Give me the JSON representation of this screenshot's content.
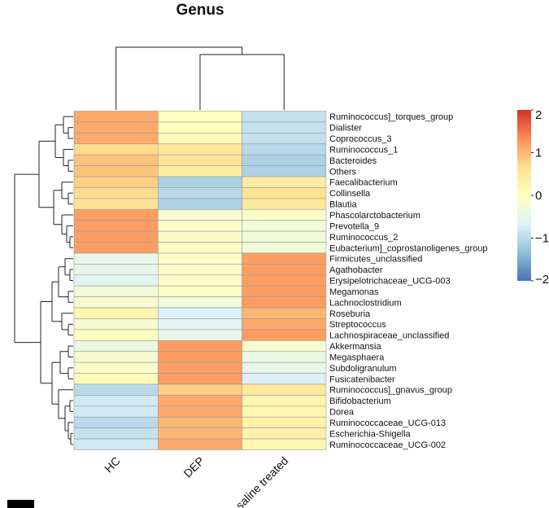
{
  "chart_data": {
    "type": "heatmap",
    "title": "Genus",
    "columns": [
      "HC",
      "DEP",
      "saline treated"
    ],
    "rows": [
      "Ruminococcus]_torques_group",
      "Dialister",
      "Coprococcus_3",
      "Ruminococcus_1",
      "Bacteroides",
      "Others",
      "Faecalibacterium",
      "Collinsella",
      "Blautia",
      "Phascolarctobacterium",
      "Prevotella_9",
      "Ruminococcus_2",
      "Eubacterium]_coprostanoligenes_group",
      "Firmicutes_unclassified",
      "Agathobacter",
      "Erysipelotrichaceae_UCG-003",
      "Megamonas",
      "Lachnoclostridium",
      "Roseburia",
      "Streptococcus",
      "Lachnospiraceae_unclassified",
      "Akkermansia",
      "Megasphaera",
      "Subdoligranulum",
      "Fusicatenibacter",
      "Ruminococcus]_gnavus_group",
      "Bifidobacterium",
      "Dorea",
      "Ruminococcaceae_UCG-013",
      "Escherichia-Shigella",
      "Ruminococcaceae_UCG-002"
    ],
    "values": [
      [
        1.1,
        0.0,
        -0.9
      ],
      [
        1.1,
        0.0,
        -0.9
      ],
      [
        1.1,
        0.1,
        -0.9
      ],
      [
        0.7,
        0.5,
        -1.0
      ],
      [
        0.9,
        0.6,
        -1.1
      ],
      [
        0.9,
        0.4,
        -1.1
      ],
      [
        0.8,
        -1.1,
        0.4
      ],
      [
        0.7,
        -1.0,
        0.6
      ],
      [
        0.6,
        -1.1,
        0.5
      ],
      [
        1.2,
        -0.2,
        -0.1
      ],
      [
        1.2,
        -0.1,
        -0.3
      ],
      [
        1.2,
        -0.1,
        -0.3
      ],
      [
        1.2,
        -0.1,
        -0.3
      ],
      [
        -0.5,
        -0.1,
        1.2
      ],
      [
        -0.5,
        -0.1,
        1.2
      ],
      [
        -0.6,
        -0.1,
        1.2
      ],
      [
        -0.3,
        -0.1,
        1.2
      ],
      [
        -0.2,
        -0.3,
        1.2
      ],
      [
        0.2,
        -0.7,
        1.0
      ],
      [
        -0.2,
        -0.6,
        1.1
      ],
      [
        0.0,
        -0.5,
        1.2
      ],
      [
        -0.4,
        1.2,
        -0.2
      ],
      [
        -0.2,
        1.2,
        -0.4
      ],
      [
        -0.1,
        1.2,
        -0.5
      ],
      [
        0.1,
        1.2,
        -0.7
      ],
      [
        -1.0,
        0.8,
        0.5
      ],
      [
        -0.8,
        1.1,
        0.2
      ],
      [
        -0.8,
        1.1,
        0.2
      ],
      [
        -1.0,
        1.0,
        0.3
      ],
      [
        -0.9,
        1.0,
        0.3
      ],
      [
        -0.8,
        1.1,
        0.2
      ]
    ],
    "colorbar": {
      "min": -2,
      "max": 2,
      "ticks": [
        2,
        1,
        0,
        -1,
        -2
      ],
      "colors": [
        "#4575b4",
        "#91bfdb",
        "#e0f3f8",
        "#ffffbf",
        "#fee090",
        "#fc8d59",
        "#d73027"
      ]
    }
  }
}
